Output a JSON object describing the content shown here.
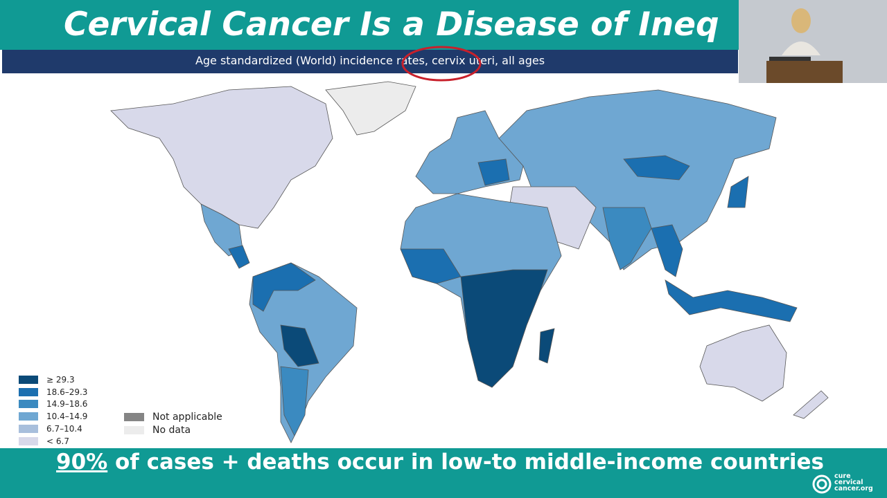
{
  "header": {
    "title": "Cervical Cancer Is a Disease of Ineq",
    "subtitle": "Age standardized (World) incidence rates, cervix uteri, all ages"
  },
  "legend": {
    "items": [
      {
        "label": "≥ 29.3",
        "color": "#0b4a78"
      },
      {
        "label": "18.6–29.3",
        "color": "#1b6fb0"
      },
      {
        "label": "14.9–18.6",
        "color": "#3b8ac0"
      },
      {
        "label": "10.4–14.9",
        "color": "#6fa7d2"
      },
      {
        "label": "6.7–10.4",
        "color": "#a8bfdc"
      },
      {
        "label": "< 6.7",
        "color": "#d8d9ea"
      }
    ],
    "other": [
      {
        "label": "Not applicable",
        "color": "#858585"
      },
      {
        "label": "No data",
        "color": "#ececec"
      }
    ]
  },
  "footer": {
    "highlight": "90%",
    "text": " of cases + deaths occur in low-to middle-income countries"
  },
  "logo": {
    "lines": [
      "cure",
      "cervical",
      "cancer.org"
    ]
  }
}
